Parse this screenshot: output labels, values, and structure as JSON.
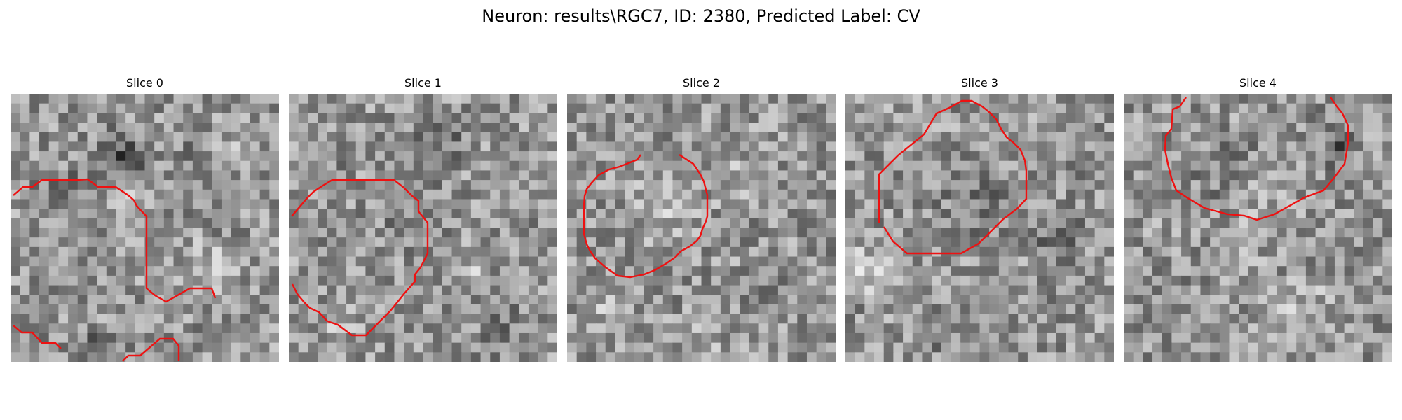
{
  "figure": {
    "title": "Neuron: results\\RGC7, ID: 2380, Predicted Label: CV",
    "contour_color": "#ee1111"
  },
  "panels": [
    {
      "title": "Slice 0"
    },
    {
      "title": "Slice 1"
    },
    {
      "title": "Slice 2"
    },
    {
      "title": "Slice 3"
    },
    {
      "title": "Slice 4"
    }
  ]
}
